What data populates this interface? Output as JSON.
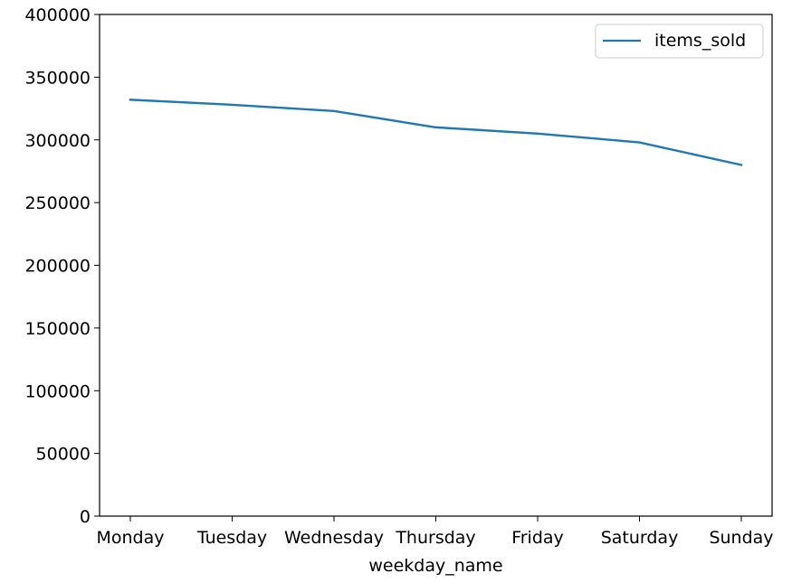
{
  "chart_data": {
    "type": "line",
    "categories": [
      "Monday",
      "Tuesday",
      "Wednesday",
      "Thursday",
      "Friday",
      "Saturday",
      "Sunday"
    ],
    "series": [
      {
        "name": "items_sold",
        "values": [
          332000,
          328000,
          323000,
          310000,
          305000,
          298000,
          280000
        ],
        "color": "#1f77b4"
      }
    ],
    "title": "",
    "xlabel": "weekday_name",
    "ylabel": "",
    "ylim": [
      0,
      400000
    ],
    "yticks": [
      "0",
      "50000",
      "100000",
      "150000",
      "200000",
      "250000",
      "300000",
      "350000",
      "400000"
    ],
    "grid": false,
    "legend_position": "top-right"
  }
}
